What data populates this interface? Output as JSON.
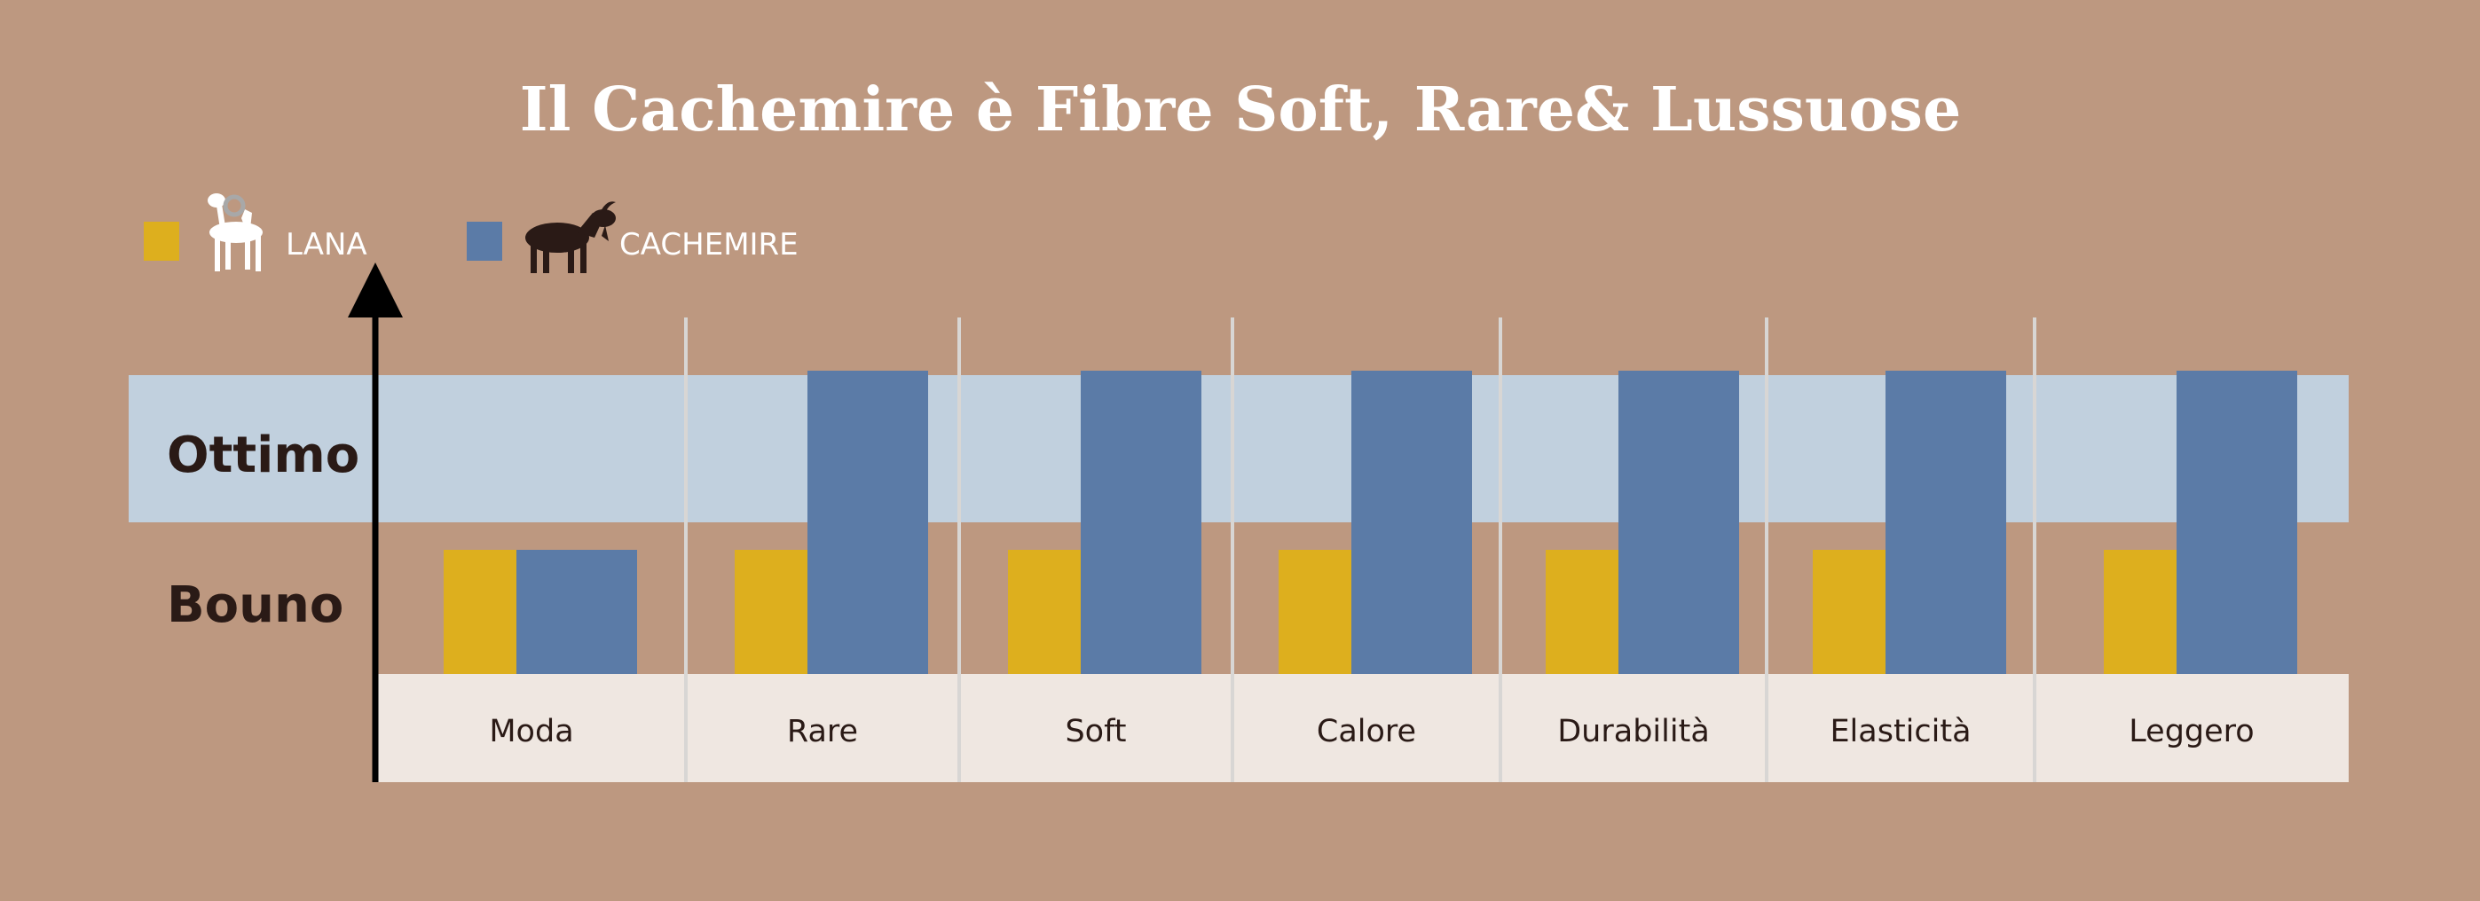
{
  "chart_data": {
    "type": "bar",
    "title": "Il Cachemire è Fibre Soft, Rare& Lussuose",
    "levels": [
      "Bouno",
      "Ottimo"
    ],
    "categories": [
      "Moda",
      "Rare",
      "Soft",
      "Calore",
      "Durabilità",
      "Elasticità",
      "Leggero"
    ],
    "series": [
      {
        "name": "LANA",
        "icon": "sheep-icon",
        "color": "#ddaf1e",
        "values": [
          1,
          1,
          1,
          1,
          1,
          1,
          1
        ]
      },
      {
        "name": "CACHEMIRE",
        "icon": "goat-icon",
        "color": "#5b7ba7",
        "values": [
          1,
          2,
          2,
          2,
          2,
          2,
          2
        ]
      }
    ],
    "ylim": [
      0,
      2
    ],
    "legend_position": "top-left",
    "colors": {
      "background": "#bd9880",
      "ottimo_band": "#c1d0de",
      "category_band": "#efe7e1",
      "separator": "#d8d6d4",
      "axis": "#000000"
    }
  }
}
